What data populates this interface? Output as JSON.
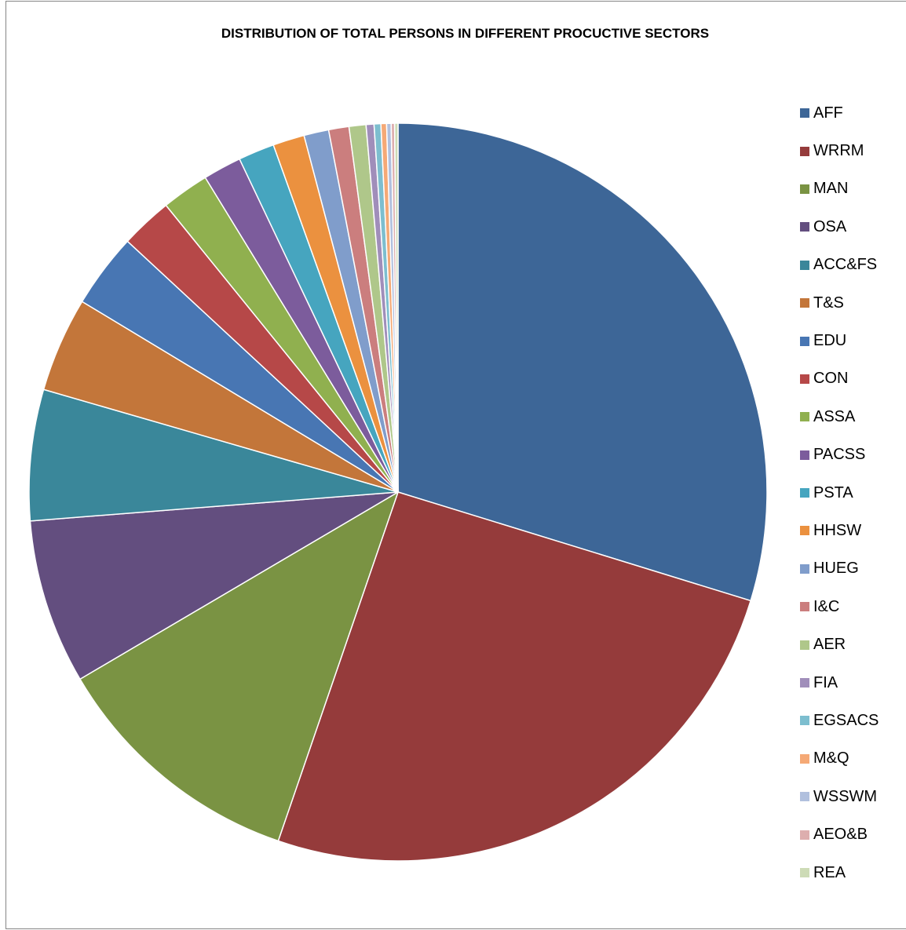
{
  "chart_data": {
    "type": "pie",
    "title": "DISTRIBUTION OF TOTAL PERSONS IN DIFFERENT PROCUCTIVE SECTORS",
    "legend_position": "right",
    "categories": [
      "AFF",
      "WRRM",
      "MAN",
      "OSA",
      "ACC&FS",
      "T&S",
      "EDU",
      "CON",
      "ASSA",
      "PACSS",
      "PSTA",
      "HHSW",
      "HUEG",
      "I&C",
      "AER",
      "FIA",
      "EGSACS",
      "M&Q",
      "WSSWM",
      "AEO&B",
      "REA"
    ],
    "values": [
      30.1,
      25.8,
      11.4,
      7.3,
      5.8,
      4.2,
      3.3,
      2.3,
      2.1,
      1.7,
      1.6,
      1.4,
      1.1,
      0.9,
      0.75,
      0.35,
      0.3,
      0.25,
      0.2,
      0.15,
      0.15
    ],
    "colors": [
      "#3D6697",
      "#953B3B",
      "#7A9343",
      "#634E7F",
      "#3A879A",
      "#C3763A",
      "#4876B3",
      "#B64848",
      "#90B04F",
      "#7C5C9C",
      "#46A5BF",
      "#EB913F",
      "#809DCB",
      "#CB7E7E",
      "#AFC78A",
      "#A08EBA",
      "#7DBECF",
      "#F5A976",
      "#B1C0DE",
      "#DDAEAE",
      "#CDDBB6"
    ]
  }
}
